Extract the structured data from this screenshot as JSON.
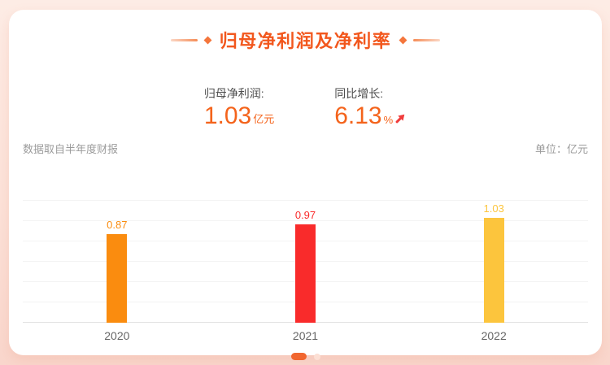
{
  "header": {
    "title": "归母净利润及净利率",
    "accent_color": "#f2571d"
  },
  "stats": [
    {
      "label": "归母净利润:",
      "value": "1.03",
      "unit": "亿元"
    },
    {
      "label": "同比增长:",
      "value": "6.13",
      "unit": "%",
      "arrow_icon": "up-right-arrow",
      "arrow_color": "#f03c3c"
    }
  ],
  "meta": {
    "source_note": "数据取自半年度财报",
    "unit_label": "单位：亿元"
  },
  "chart_data": {
    "type": "bar",
    "title": "归母净利润及净利率",
    "categories": [
      "2020",
      "2021",
      "2022"
    ],
    "values": [
      0.87,
      0.97,
      1.03
    ],
    "value_labels": [
      "0.87",
      "0.97",
      "1.03"
    ],
    "bar_colors": [
      "#fa8c0f",
      "#f92b2b",
      "#fcc53d"
    ],
    "xlabel": "",
    "ylabel": "亿元",
    "ylim": [
      0,
      1.2
    ],
    "grid_step": 0.2,
    "grid": true,
    "legend": false,
    "grid_color": "#f3f3f3",
    "baseline_color": "#e2e2e2"
  },
  "pagination": {
    "active_color": "#f1662f",
    "inactive_color": "#fcdfd4",
    "dots": [
      {
        "active": true
      },
      {
        "active": false
      }
    ]
  }
}
